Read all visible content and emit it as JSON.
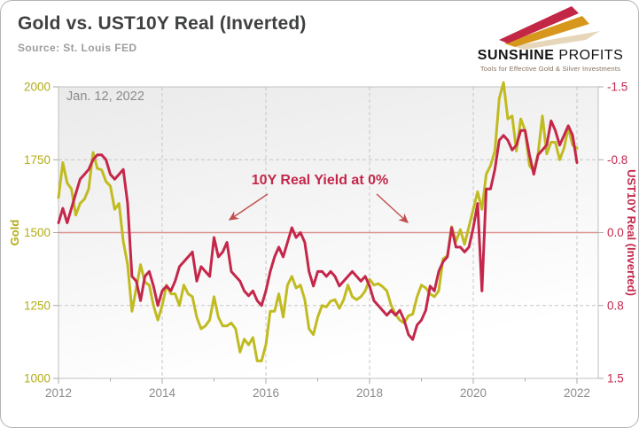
{
  "header": {
    "title": "Gold vs. UST10Y Real (Inverted)",
    "source": "Source: St. Louis FED",
    "logo": {
      "name_bold": "SUNSHINE",
      "name_light": " PROFITS",
      "tagline": "Tools for Effective Gold & Silver Investments",
      "arrow_colors": [
        "#c22745",
        "#d6971c",
        "#e6d7ba"
      ]
    }
  },
  "chart": {
    "date_label": "Jan. 12, 2022",
    "annotation": {
      "text": "10Y Real Yield at 0%",
      "color": "#c0504d"
    },
    "left_axis": {
      "title": "Gold",
      "tick_labels": [
        "2000",
        "1750",
        "1500",
        "1250",
        "1000"
      ],
      "min": 1000,
      "max": 2000,
      "color": "#b3ac15"
    },
    "right_axis": {
      "title": "UST10Y Real (Inverted)",
      "tick_labels": [
        "-1.5",
        "-0.8",
        "0.0",
        "0.8",
        "1.5"
      ],
      "min": -1.5,
      "max": 1.5,
      "inverted": true,
      "color": "#c4274a"
    },
    "x_axis": {
      "labels": [
        "2012",
        "2014",
        "2016",
        "2018",
        "2020",
        "2022"
      ],
      "min_year": 2012,
      "max_year": 2022,
      "color": "#8c8c8c"
    },
    "zero_line_color": "#dc9090",
    "grid_color": "#c6c6c6",
    "plot_border_color": "#c0c0c0"
  },
  "chart_data": {
    "type": "line",
    "title": "Gold vs. UST10Y Real (Inverted)",
    "x_start_year": 2012,
    "x_step_months": 1,
    "x_end_label": "Jan. 12, 2022",
    "left_ylim": [
      1000,
      2000
    ],
    "right_ylim": [
      -1.5,
      1.5
    ],
    "right_axis_inverted": true,
    "grid": true,
    "series": [
      {
        "name": "Gold",
        "axis": "left",
        "color": "#c1bb22",
        "values": [
          1620,
          1740,
          1670,
          1650,
          1560,
          1600,
          1615,
          1650,
          1775,
          1720,
          1715,
          1675,
          1660,
          1580,
          1600,
          1470,
          1390,
          1230,
          1310,
          1390,
          1330,
          1320,
          1250,
          1200,
          1250,
          1320,
          1290,
          1290,
          1250,
          1320,
          1290,
          1280,
          1210,
          1170,
          1180,
          1200,
          1280,
          1210,
          1180,
          1180,
          1190,
          1170,
          1090,
          1135,
          1115,
          1140,
          1060,
          1060,
          1115,
          1230,
          1230,
          1290,
          1210,
          1320,
          1350,
          1310,
          1320,
          1270,
          1170,
          1150,
          1210,
          1250,
          1245,
          1265,
          1270,
          1240,
          1270,
          1320,
          1280,
          1270,
          1280,
          1300,
          1340,
          1320,
          1325,
          1315,
          1300,
          1250,
          1220,
          1200,
          1190,
          1215,
          1220,
          1280,
          1320,
          1310,
          1290,
          1280,
          1300,
          1410,
          1420,
          1520,
          1470,
          1510,
          1460,
          1520,
          1580,
          1640,
          1580,
          1700,
          1730,
          1780,
          1960,
          2015,
          1890,
          1900,
          1780,
          1890,
          1850,
          1730,
          1710,
          1770,
          1900,
          1770,
          1810,
          1810,
          1750,
          1790,
          1860,
          1800,
          1790
        ]
      },
      {
        "name": "UST10Y Real (Inverted)",
        "axis": "right",
        "color": "#c4274a",
        "values": [
          -0.1,
          -0.25,
          -0.1,
          -0.25,
          -0.4,
          -0.55,
          -0.6,
          -0.65,
          -0.75,
          -0.8,
          -0.8,
          -0.75,
          -0.6,
          -0.55,
          -0.6,
          -0.65,
          -0.3,
          0.45,
          0.5,
          0.7,
          0.45,
          0.4,
          0.55,
          0.75,
          0.6,
          0.55,
          0.6,
          0.5,
          0.35,
          0.3,
          0.25,
          0.2,
          0.5,
          0.35,
          0.4,
          0.45,
          0.05,
          0.25,
          0.2,
          0.1,
          0.4,
          0.45,
          0.5,
          0.6,
          0.65,
          0.6,
          0.7,
          0.75,
          0.6,
          0.4,
          0.25,
          0.15,
          0.25,
          0.1,
          -0.05,
          0.05,
          0.0,
          0.1,
          0.4,
          0.55,
          0.4,
          0.4,
          0.45,
          0.4,
          0.45,
          0.55,
          0.5,
          0.45,
          0.4,
          0.45,
          0.5,
          0.45,
          0.55,
          0.7,
          0.75,
          0.8,
          0.85,
          0.8,
          0.85,
          0.8,
          0.9,
          1.05,
          1.1,
          0.95,
          0.9,
          0.8,
          0.55,
          0.6,
          0.4,
          0.3,
          0.25,
          -0.05,
          0.15,
          0.15,
          0.2,
          0.15,
          -0.05,
          -0.3,
          0.6,
          -0.45,
          -0.45,
          -0.65,
          -0.95,
          -1.0,
          -0.95,
          -0.85,
          -0.9,
          -1.05,
          -1.05,
          -0.8,
          -0.6,
          -0.8,
          -0.85,
          -0.9,
          -1.15,
          -1.05,
          -0.9,
          -1.0,
          -1.1,
          -1.0,
          -0.72
        ]
      }
    ]
  }
}
